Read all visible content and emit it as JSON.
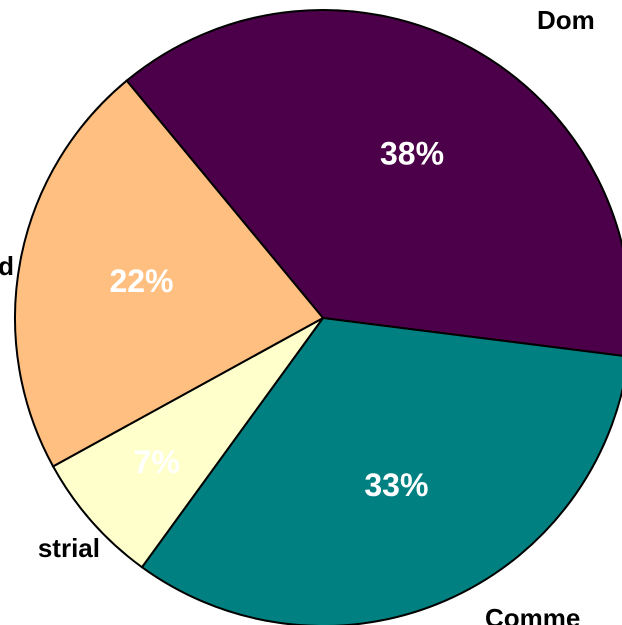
{
  "chart_data": {
    "type": "pie",
    "categories": [
      "Dom",
      "Comme",
      "strial",
      "d"
    ],
    "values": [
      38,
      33,
      7,
      22
    ],
    "value_labels": [
      "38%",
      "33%",
      "7%",
      "22%"
    ],
    "colors": [
      "#4c0049",
      "#008080",
      "#ffffcc",
      "#ffbf80"
    ]
  }
}
